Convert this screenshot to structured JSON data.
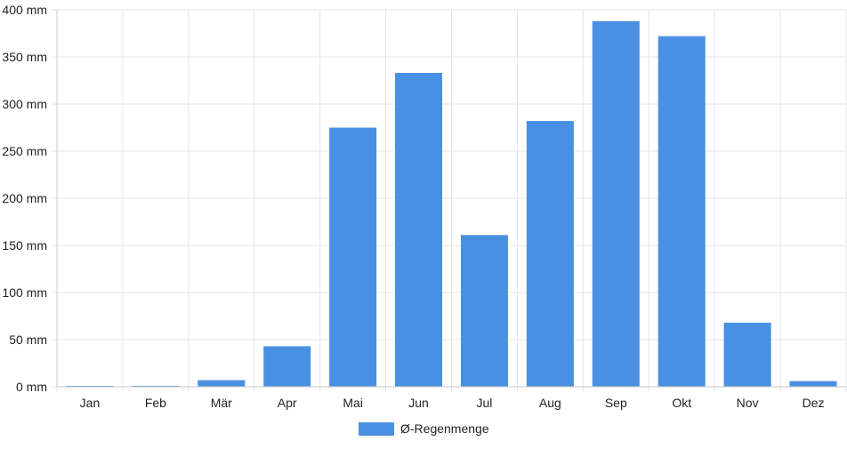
{
  "chart_data": {
    "type": "bar",
    "categories": [
      "Jan",
      "Feb",
      "Mär",
      "Apr",
      "Mai",
      "Jun",
      "Jul",
      "Aug",
      "Sep",
      "Okt",
      "Nov",
      "Dez"
    ],
    "series": [
      {
        "name": "Ø-Regenmenge",
        "values": [
          0.5,
          1,
          7,
          43,
          275,
          333,
          161,
          282,
          388,
          372,
          68,
          6
        ]
      }
    ],
    "y_ticks": [
      "0 mm",
      "50 mm",
      "100 mm",
      "150 mm",
      "200 mm",
      "250 mm",
      "300 mm",
      "350 mm",
      "400 mm"
    ],
    "ylim": [
      0,
      400
    ],
    "grid": true,
    "legend_position": "bottom",
    "colors": {
      "bar": "#4a90e2",
      "grid": "#e5e5e5",
      "axis": "#c8c8c8",
      "text": "#222222"
    }
  }
}
